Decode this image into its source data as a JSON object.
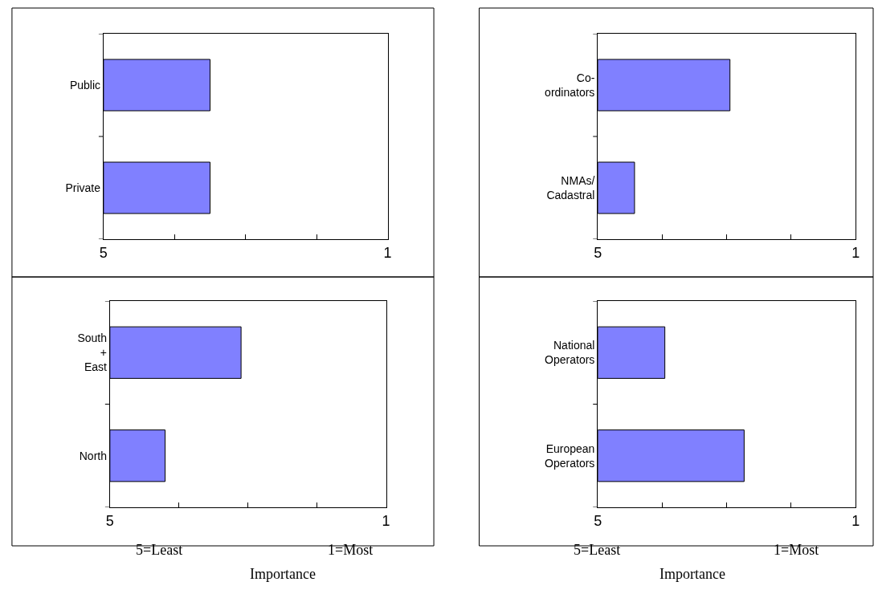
{
  "chart_data": [
    {
      "type": "bar",
      "orientation": "horizontal",
      "categories": [
        "Public",
        "Private"
      ],
      "base": [
        5,
        5
      ],
      "values": [
        -1.5,
        -1.5
      ],
      "color": "#8080ff",
      "xlim": [
        5,
        1
      ],
      "xticks": [
        5,
        {
          "value": 4,
          "label": null
        },
        {
          "value": 3,
          "label": null
        },
        {
          "value": 2,
          "label": null
        },
        1
      ]
    },
    {
      "type": "bar",
      "orientation": "horizontal",
      "categories": [
        "Co-ordinators",
        "NMAs/ Cadastral"
      ],
      "base": [
        5,
        5
      ],
      "values": [
        -2.05,
        -0.57
      ],
      "color": "#8080ff",
      "xlim": [
        5,
        1
      ],
      "xticks": [
        5,
        {
          "value": 4,
          "label": null
        },
        {
          "value": 3,
          "label": null
        },
        {
          "value": 2,
          "label": null
        },
        1
      ]
    },
    {
      "type": "bar",
      "orientation": "horizontal",
      "categories": [
        "South + East",
        "North"
      ],
      "base": [
        5,
        5
      ],
      "values": [
        -1.9,
        -0.8
      ],
      "color": "#8080ff",
      "xlim": [
        5,
        1
      ],
      "xticks": [
        5,
        {
          "value": 4,
          "label": null
        },
        {
          "value": 3,
          "label": null
        },
        {
          "value": 2,
          "label": null
        },
        1
      ],
      "xlabel": "Importance",
      "annotations": [
        "5=Least",
        "1=Most"
      ]
    },
    {
      "type": "bar",
      "orientation": "horizontal",
      "categories": [
        "National Operators",
        "European Operators"
      ],
      "base": [
        5,
        5
      ],
      "values": [
        -1.04,
        -2.27
      ],
      "color": "#8080ff",
      "xlim": [
        5,
        1
      ],
      "xticks": [
        5,
        {
          "value": 4,
          "label": null
        },
        {
          "value": 3,
          "label": null
        },
        {
          "value": 2,
          "label": null
        },
        1
      ],
      "xlabel": "Importance",
      "annotations": [
        "5=Least",
        "1=Most"
      ]
    }
  ]
}
